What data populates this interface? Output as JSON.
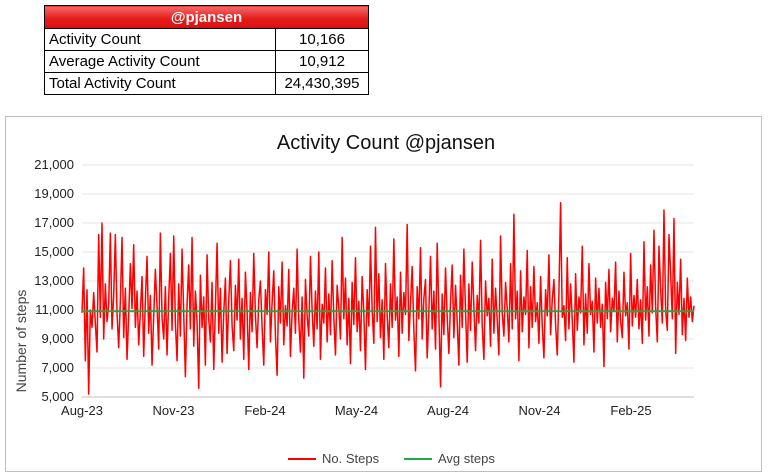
{
  "stats_table": {
    "header": "@pjansen",
    "rows": [
      {
        "label": "Activity Count",
        "value": "10,166"
      },
      {
        "label": "Average Activity Count",
        "value": "10,912"
      },
      {
        "label": "Total Activity Count",
        "value": "24,430,395"
      }
    ]
  },
  "colors": {
    "series": "#ff0000",
    "average": "#1ea848",
    "header": "#e81c1c"
  },
  "chart_data": {
    "type": "line",
    "title": "Activity Count @pjansen",
    "xlabel": "",
    "ylabel": "Number of steps",
    "ylim": [
      5000,
      21000
    ],
    "yticks": [
      "5,000",
      "7,000",
      "9,000",
      "11,000",
      "13,000",
      "15,000",
      "17,000",
      "19,000",
      "21,000"
    ],
    "xticks": [
      "Aug-23",
      "Nov-23",
      "Feb-24",
      "May-24",
      "Aug-24",
      "Nov-24",
      "Feb-25"
    ],
    "grid": "horizontal",
    "legend": "bottom",
    "series": [
      {
        "name": "No. Steps",
        "note": "daily values, Aug-23 to Apr-25 (sampled peaks/troughs as read from chart)",
        "values": [
          10800,
          13900,
          7500,
          12400,
          5200,
          11000,
          9800,
          12200,
          10100,
          8100,
          16200,
          10500,
          17000,
          9000,
          12800,
          10200,
          11400,
          16300,
          9700,
          12000,
          16200,
          10800,
          8400,
          11600,
          16000,
          9100,
          12500,
          7600,
          10600,
          14200,
          11100,
          15500,
          9800,
          12300,
          8600,
          10900,
          13300,
          7800,
          11700,
          14700,
          9400,
          12000,
          7200,
          10600,
          13800,
          11300,
          8300,
          16300,
          10500,
          9000,
          12600,
          7900,
          11800,
          14900,
          9600,
          16100,
          10100,
          7500,
          12800,
          9200,
          15200,
          10700,
          6400,
          11400,
          14100,
          9700,
          16000,
          8500,
          12300,
          10200,
          5600,
          13400,
          9800,
          11900,
          7200,
          14800,
          10400,
          8800,
          12900,
          6900,
          11200,
          15600,
          9400,
          12500,
          7400,
          10800,
          13200,
          8000,
          11600,
          14400,
          9900,
          8200,
          12700,
          10300,
          14500,
          9000,
          11800,
          7600,
          13600,
          10900,
          6900,
          12200,
          9500,
          14900,
          10600,
          8400,
          11700,
          13000,
          9800,
          7200,
          12400,
          10700,
          15000,
          8800,
          11500,
          13700,
          9200,
          6500,
          12600,
          10100,
          14300,
          8600,
          11300,
          9900,
          13800,
          7800,
          10800,
          12500,
          9400,
          15200,
          10300,
          8100,
          11900,
          6300,
          13100,
          10600,
          9200,
          14700,
          11000,
          8500,
          12300,
          9700,
          15000,
          7600,
          11400,
          10100,
          13900,
          8800,
          12100,
          9300,
          14400,
          10500,
          7900,
          12700,
          11200,
          9000,
          16000,
          10400,
          13200,
          8600,
          11800,
          7300,
          12900,
          10000,
          14600,
          9500,
          11600,
          8200,
          13300,
          10800,
          6900,
          12400,
          9900,
          15400,
          11000,
          8700,
          16700,
          10200,
          13500,
          9100,
          11700,
          7600,
          14200,
          10600,
          8400,
          12800,
          9800,
          15900,
          10300,
          11900,
          7800,
          13600,
          9400,
          12200,
          10700,
          16900,
          8900,
          11500,
          14000,
          9600,
          6800,
          12600,
          10400,
          15300,
          9000,
          11800,
          13100,
          7700,
          10900,
          14700,
          9700,
          12300,
          8300,
          15600,
          10800,
          5700,
          12100,
          9300,
          13900,
          10500,
          8000,
          11600,
          14100,
          9100,
          12700,
          10200,
          7200,
          13400,
          9800,
          15200,
          10900,
          7400,
          12800,
          9600,
          14300,
          11200,
          8200,
          12000,
          10100,
          15800,
          9900,
          7600,
          13000,
          10600,
          11800,
          8500,
          14500,
          9400,
          12500,
          10300,
          7900,
          16100,
          10800,
          9200,
          12900,
          11100,
          8800,
          14200,
          9700,
          17600,
          10400,
          12300,
          7500,
          13700,
          9500,
          11900,
          10700,
          15100,
          8400,
          12600,
          9800,
          14000,
          10200,
          11500,
          8700,
          13300,
          9900,
          7700,
          12400,
          10600,
          14800,
          9300,
          11700,
          13100,
          10000,
          7900,
          12200,
          18400,
          10500,
          11300,
          8900,
          14600,
          9700,
          12800,
          10300,
          7400,
          13500,
          9600,
          11900,
          10800,
          15400,
          8600,
          12100,
          9400,
          14200,
          10700,
          11600,
          8100,
          13200,
          10100,
          12500,
          9800,
          11400,
          7100,
          12900,
          10400,
          13800,
          9500,
          11800,
          10900,
          14300,
          8800,
          12300,
          10200,
          9100,
          13600,
          10600,
          11500,
          8300,
          14900,
          9900,
          12000,
          10500,
          13100,
          9700,
          11700,
          8700,
          15700,
          10300,
          12600,
          9200,
          14100,
          10800,
          16500,
          11200,
          8800,
          15400,
          12400,
          10100,
          17900,
          11000,
          9600,
          16200,
          13500,
          10400,
          17300,
          8000,
          12900,
          10700,
          14500,
          9300,
          11800,
          8900,
          13200,
          10500,
          11900,
          10200,
          11300
        ]
      },
      {
        "name": "Avg steps",
        "value": 10912
      }
    ]
  },
  "legend": {
    "steps_label": "No. Steps",
    "avg_label": "Avg steps"
  }
}
